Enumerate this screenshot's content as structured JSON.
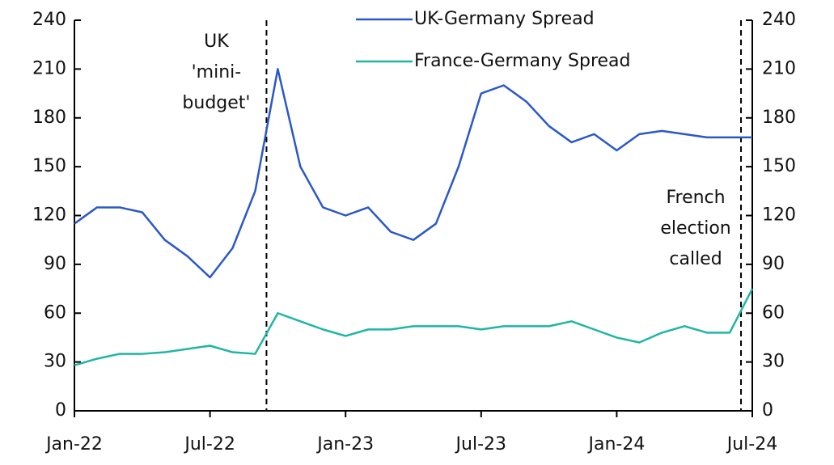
{
  "chart_data": {
    "type": "line",
    "x": [
      "2022-01",
      "2022-02",
      "2022-03",
      "2022-04",
      "2022-05",
      "2022-06",
      "2022-07",
      "2022-08",
      "2022-09",
      "2022-10",
      "2022-11",
      "2022-12",
      "2023-01",
      "2023-02",
      "2023-03",
      "2023-04",
      "2023-05",
      "2023-06",
      "2023-07",
      "2023-08",
      "2023-09",
      "2023-10",
      "2023-11",
      "2023-12",
      "2024-01",
      "2024-02",
      "2024-03",
      "2024-04",
      "2024-05",
      "2024-06",
      "2024-07"
    ],
    "series": [
      {
        "name": "UK-Germany Spread",
        "color": "#2a58c9",
        "values": [
          115,
          125,
          125,
          122,
          105,
          95,
          82,
          100,
          135,
          210,
          150,
          125,
          120,
          125,
          110,
          105,
          115,
          150,
          195,
          200,
          190,
          175,
          165,
          170,
          160,
          170,
          172,
          170,
          168,
          168,
          168
        ]
      },
      {
        "name": "France-Germany Spread",
        "color": "#1fb5a5",
        "values": [
          28,
          32,
          35,
          35,
          36,
          38,
          40,
          36,
          35,
          60,
          55,
          50,
          46,
          50,
          50,
          52,
          52,
          52,
          50,
          52,
          52,
          52,
          55,
          50,
          45,
          42,
          48,
          52,
          48,
          48,
          75
        ],
        "axis": "y2"
      }
    ],
    "ylim": [
      0,
      240
    ],
    "yticks": [
      0,
      30,
      60,
      90,
      120,
      150,
      180,
      210,
      240
    ],
    "y2lim": [
      0,
      240
    ],
    "y2ticks": [
      0,
      30,
      60,
      90,
      120,
      150,
      180,
      210,
      240
    ],
    "xlim": [
      "2022-01",
      "2024-07"
    ],
    "xticks": [
      {
        "value": "2022-01",
        "label": "Jan-22"
      },
      {
        "value": "2022-07",
        "label": "Jul-22"
      },
      {
        "value": "2023-01",
        "label": "Jan-23"
      },
      {
        "value": "2023-07",
        "label": "Jul-23"
      },
      {
        "value": "2024-01",
        "label": "Jan-24"
      },
      {
        "value": "2024-07",
        "label": "Jul-24"
      }
    ],
    "annotations": [
      {
        "x": "2022-09",
        "lines": [
          "UK",
          "'mini-",
          "budget'"
        ]
      },
      {
        "x": "2024-06",
        "lines": [
          "French",
          "election",
          "called"
        ]
      }
    ],
    "legend": "top"
  }
}
